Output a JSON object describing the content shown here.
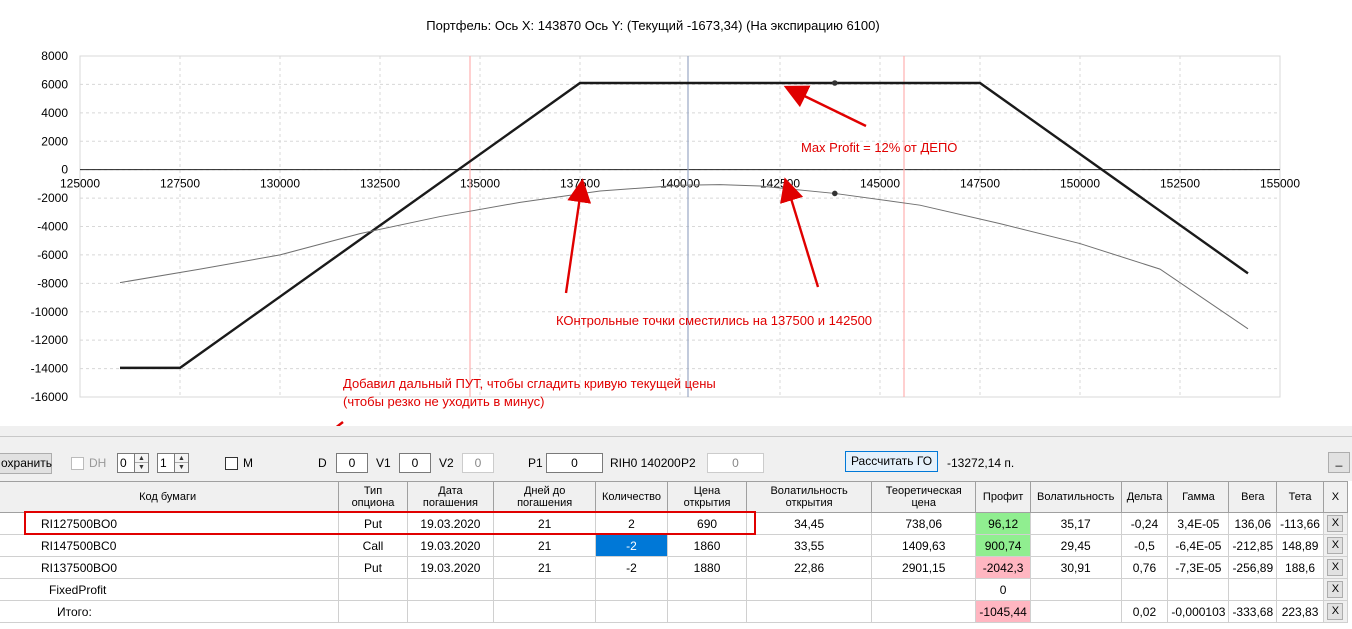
{
  "chart_data": {
    "type": "line",
    "title": "Портфель:  Ось X:  143870  Ось Y:   (Текущий  -1673,34)   (На экспирацию  6100)",
    "x_axis": {
      "min": 125000,
      "max": 155000,
      "ticks": [
        "125000",
        "127500",
        "130000",
        "132500",
        "135000",
        "137500",
        "140000",
        "142500",
        "145000",
        "147500",
        "150000",
        "152500",
        "155000"
      ]
    },
    "y_axis": {
      "min": -16000,
      "max": 8000,
      "ticks": [
        "8000",
        "6000",
        "4000",
        "2000",
        "0",
        "-2000",
        "-4000",
        "-6000",
        "-8000",
        "-10000",
        "-12000",
        "-14000",
        "-16000"
      ]
    },
    "grid": true,
    "vertical_markers": [
      {
        "x": 134750,
        "color": "#ffb0b0"
      },
      {
        "x": 140200,
        "color": "#9aa8c4"
      },
      {
        "x": 145600,
        "color": "#ffb0b0"
      }
    ],
    "series": [
      {
        "points": [
          [
            126000,
            -13950
          ],
          [
            127500,
            -13950
          ],
          [
            137500,
            6100
          ],
          [
            147500,
            6100
          ],
          [
            154200,
            -7300
          ]
        ],
        "color": "#1a1a1a",
        "marker": {
          "x": 143870,
          "y": 6100
        }
      },
      {
        "points": [
          [
            126000,
            -7950
          ],
          [
            128000,
            -7000
          ],
          [
            130000,
            -6000
          ],
          [
            132000,
            -4500
          ],
          [
            134000,
            -3300
          ],
          [
            136000,
            -2300
          ],
          [
            138000,
            -1500
          ],
          [
            140000,
            -1100
          ],
          [
            141000,
            -1050
          ],
          [
            142000,
            -1150
          ],
          [
            143870,
            -1673
          ],
          [
            146000,
            -2500
          ],
          [
            148000,
            -3800
          ],
          [
            150000,
            -5200
          ],
          [
            152000,
            -7000
          ],
          [
            154200,
            -11200
          ]
        ],
        "color": "#707070",
        "marker": {
          "x": 143870,
          "y": -1673
        }
      }
    ],
    "annotations": {
      "max_profit": "Max Profit = 12% от ДЕПО",
      "control_points": "КОнтрольные точки сместились на 137500 и 142500",
      "far_put_line1": "Добавил дальный ПУТ, чтобы сгладить кривую текущей цены",
      "far_put_line2": "(чтобы резко не уходить в минус)"
    }
  },
  "toolbar": {
    "save_label": "охранить",
    "dh_label": "DH",
    "spin1_value": "0",
    "spin2_value": "1",
    "m_label": "M",
    "d_label": "D",
    "d_value": "0",
    "v1_label": "V1",
    "v1_value": "0",
    "v2_label": "V2",
    "v2_value": "0",
    "p1_label": "P1",
    "p1_value": "0",
    "instrument": "RIH0 140200",
    "p2_label": "P2",
    "p2_value": "0",
    "calc_label": "Рассчитать ГО",
    "go_value": "-13272,14 п.",
    "minimize_label": "_"
  },
  "table": {
    "headers": [
      "Код бумаги",
      "Тип опциона",
      "Дата погашения",
      "Дней до погашения",
      "Количество",
      "Цена открытия",
      "Волатильность открытия",
      "Теоретическая цена",
      "Профит",
      "Волатильность",
      "Дельта",
      "Гамма",
      "Вега",
      "Тета",
      "X"
    ],
    "rows": [
      [
        "RI127500BO0",
        "Put",
        "19.03.2020",
        "21",
        "2",
        "690",
        "34,45",
        "738,06",
        "96,12",
        "35,17",
        "-0,24",
        "3,4E-05",
        "136,06",
        "-113,66",
        "X"
      ],
      [
        "RI147500BC0",
        "Call",
        "19.03.2020",
        "21",
        "-2",
        "1860",
        "33,55",
        "1409,63",
        "900,74",
        "29,45",
        "-0,5",
        "-6,4E-05",
        "-212,85",
        "148,89",
        "X"
      ],
      [
        "RI137500BO0",
        "Put",
        "19.03.2020",
        "21",
        "-2",
        "1880",
        "22,86",
        "2901,15",
        "-2042,3",
        "30,91",
        "0,76",
        "-7,3E-05",
        "-256,89",
        "188,6",
        "X"
      ]
    ],
    "fixed_profit_label": "FixedProfit",
    "fixed_profit_value": "0",
    "total_label": "Итого:",
    "total": {
      "profit": "-1045,44",
      "delta": "0,02",
      "gamma": "-0,000103",
      "vega": "-333,68",
      "theta": "223,83"
    },
    "x_label": "X"
  }
}
